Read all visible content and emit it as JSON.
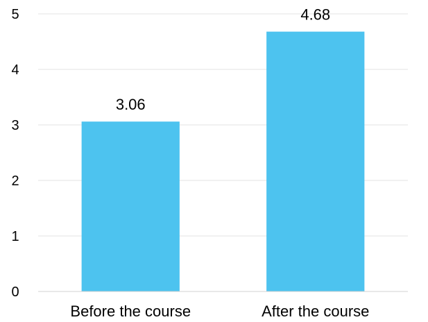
{
  "chart_data": {
    "type": "bar",
    "title": "",
    "xlabel": "",
    "ylabel": "",
    "categories": [
      "Before the course",
      "After the course"
    ],
    "values": [
      3.06,
      4.68
    ],
    "value_labels": [
      "3.06",
      "4.68"
    ],
    "ylim": [
      0,
      5
    ],
    "yticks": [
      0,
      1,
      2,
      3,
      4,
      5
    ],
    "grid": true,
    "legend": false,
    "colors": {
      "bar": "#4DC3EF",
      "grid": "#E3E3E3",
      "axis": "#D0D0D0"
    }
  }
}
